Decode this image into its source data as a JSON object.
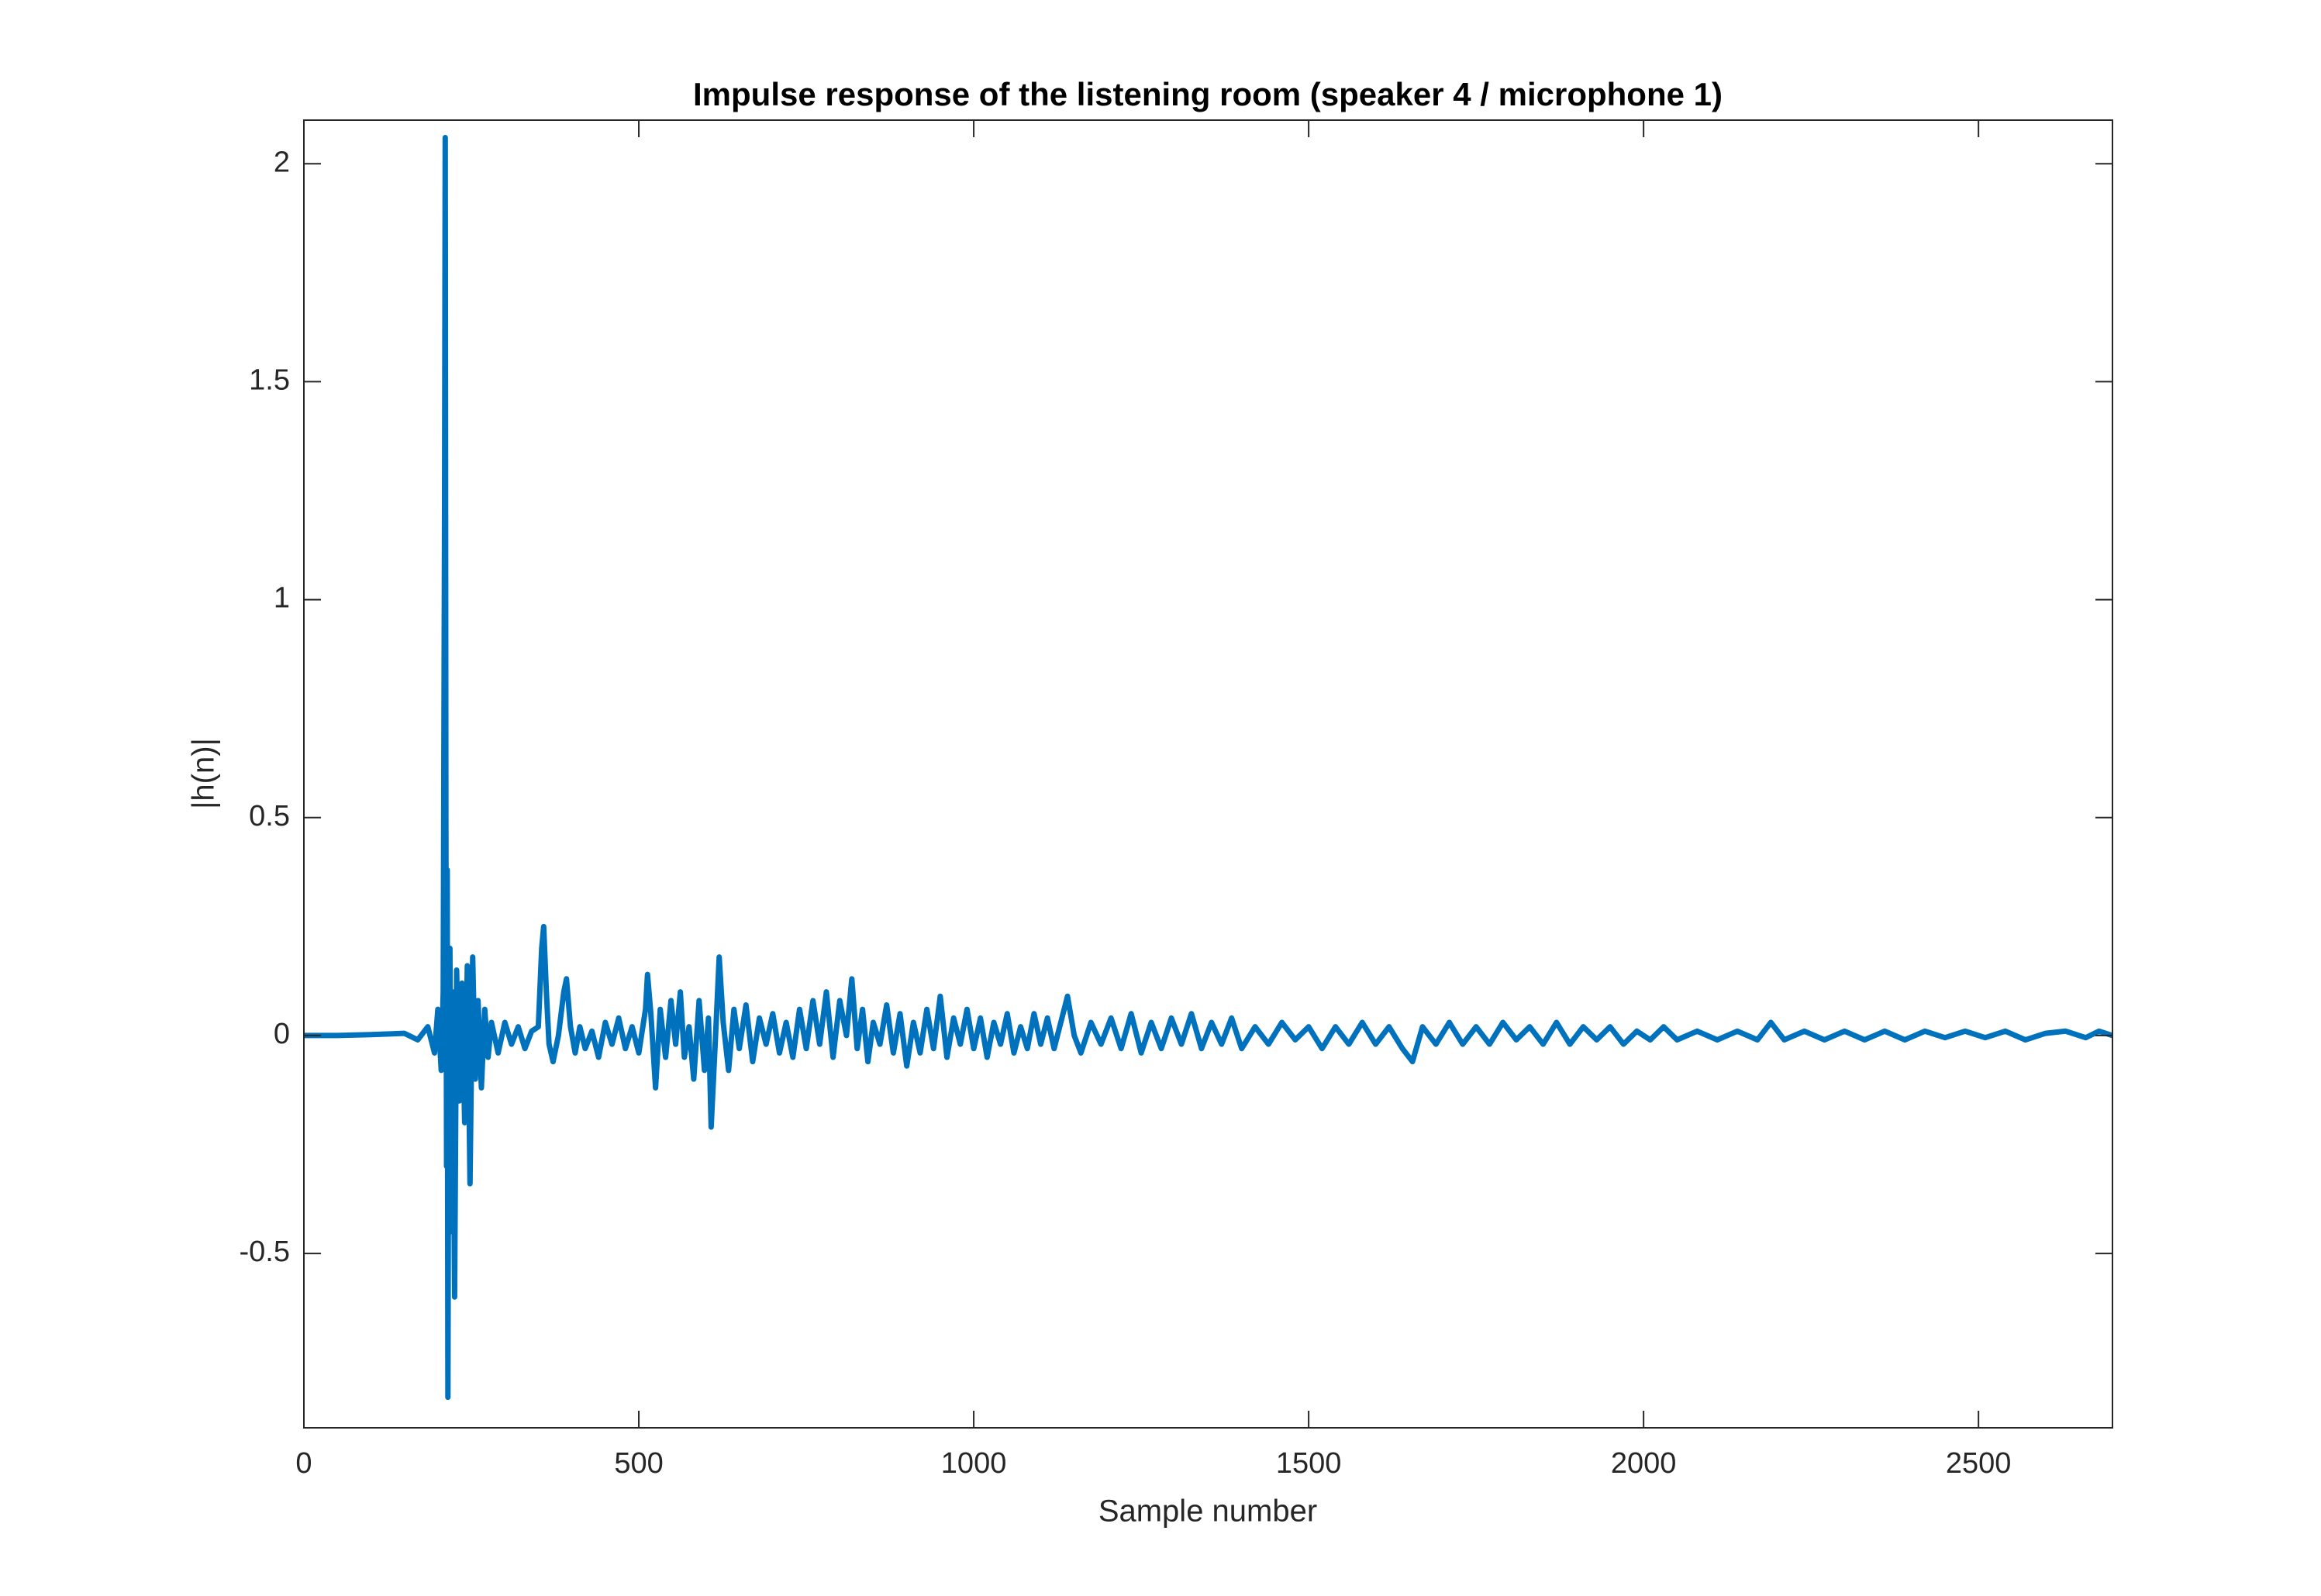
{
  "chart_data": {
    "type": "line",
    "title": "Impulse response of the listening room (speaker 4 / microphone 1)",
    "x_label": "Sample number",
    "y_label": "|h(n)|",
    "xlim": [
      0,
      2700
    ],
    "xticks": [
      0,
      500,
      1000,
      1500,
      2000,
      2500
    ],
    "ylim": [
      -0.9,
      2.1
    ],
    "yticks": [
      -0.5,
      0,
      0.5,
      1,
      1.5,
      2
    ],
    "box": true,
    "x": [
      0,
      50,
      100,
      150,
      170,
      185,
      195,
      200,
      205,
      208,
      210,
      211,
      212,
      213,
      214,
      215,
      216,
      218,
      220,
      222,
      225,
      228,
      232,
      236,
      240,
      244,
      248,
      252,
      256,
      260,
      265,
      270,
      275,
      280,
      290,
      300,
      310,
      320,
      330,
      340,
      350,
      355,
      358,
      362,
      366,
      372,
      380,
      388,
      392,
      398,
      405,
      412,
      420,
      430,
      440,
      450,
      460,
      470,
      480,
      490,
      500,
      510,
      513,
      518,
      525,
      532,
      540,
      548,
      555,
      562,
      568,
      575,
      582,
      590,
      598,
      604,
      608,
      614,
      620,
      626,
      634,
      642,
      650,
      660,
      670,
      680,
      690,
      700,
      710,
      720,
      730,
      740,
      750,
      760,
      770,
      780,
      790,
      800,
      810,
      818,
      826,
      834,
      842,
      850,
      860,
      870,
      880,
      890,
      900,
      910,
      920,
      930,
      940,
      950,
      960,
      970,
      980,
      990,
      1000,
      1010,
      1020,
      1030,
      1040,
      1050,
      1060,
      1070,
      1080,
      1090,
      1100,
      1110,
      1120,
      1130,
      1140,
      1150,
      1160,
      1175,
      1190,
      1205,
      1220,
      1235,
      1250,
      1265,
      1280,
      1295,
      1310,
      1325,
      1340,
      1355,
      1370,
      1385,
      1400,
      1420,
      1440,
      1460,
      1480,
      1500,
      1520,
      1540,
      1560,
      1580,
      1600,
      1620,
      1640,
      1655,
      1670,
      1690,
      1710,
      1730,
      1750,
      1770,
      1790,
      1810,
      1830,
      1850,
      1870,
      1890,
      1910,
      1930,
      1950,
      1970,
      1990,
      2010,
      2030,
      2050,
      2080,
      2110,
      2140,
      2170,
      2190,
      2210,
      2240,
      2270,
      2300,
      2330,
      2360,
      2390,
      2420,
      2450,
      2480,
      2510,
      2540,
      2570,
      2600,
      2630,
      2660,
      2680,
      2700
    ],
    "series": [
      {
        "color": "#0072bd",
        "values": [
          0,
          0,
          0.002,
          0.005,
          -0.01,
          0.02,
          -0.04,
          0.06,
          -0.08,
          0.1,
          1.2,
          2.06,
          0.5,
          -0.3,
          0.38,
          -0.83,
          -0.2,
          0.2,
          -0.45,
          0.1,
          -0.6,
          0.15,
          -0.15,
          0.12,
          -0.2,
          0.16,
          -0.34,
          0.18,
          -0.1,
          0.08,
          -0.12,
          0.06,
          -0.05,
          0.03,
          -0.04,
          0.03,
          -0.02,
          0.02,
          -0.03,
          0.01,
          0.02,
          0.2,
          0.25,
          0.1,
          -0.02,
          -0.06,
          0,
          0.1,
          0.13,
          0.02,
          -0.04,
          0.02,
          -0.03,
          0.01,
          -0.05,
          0.03,
          -0.02,
          0.04,
          -0.03,
          0.02,
          -0.04,
          0.06,
          0.14,
          0.05,
          -0.12,
          0.06,
          -0.05,
          0.08,
          -0.02,
          0.1,
          -0.05,
          0.02,
          -0.1,
          0.08,
          -0.08,
          0.04,
          -0.21,
          -0.02,
          0.18,
          0.03,
          -0.08,
          0.06,
          -0.03,
          0.07,
          -0.06,
          0.04,
          -0.02,
          0.05,
          -0.04,
          0.03,
          -0.05,
          0.06,
          -0.03,
          0.08,
          -0.02,
          0.1,
          -0.05,
          0.08,
          0,
          0.13,
          -0.03,
          0.06,
          -0.06,
          0.03,
          -0.02,
          0.07,
          -0.04,
          0.05,
          -0.07,
          0.03,
          -0.04,
          0.06,
          -0.03,
          0.09,
          -0.05,
          0.04,
          -0.02,
          0.06,
          -0.03,
          0.04,
          -0.05,
          0.03,
          -0.02,
          0.05,
          -0.04,
          0.02,
          -0.03,
          0.05,
          -0.02,
          0.04,
          -0.03,
          0.03,
          0.09,
          0,
          -0.04,
          0.03,
          -0.02,
          0.04,
          -0.03,
          0.05,
          -0.04,
          0.03,
          -0.03,
          0.04,
          -0.02,
          0.05,
          -0.03,
          0.03,
          -0.02,
          0.04,
          -0.03,
          0.02,
          -0.02,
          0.03,
          -0.01,
          0.02,
          -0.03,
          0.02,
          -0.02,
          0.03,
          -0.02,
          0.02,
          -0.03,
          -0.06,
          0.02,
          -0.02,
          0.03,
          -0.02,
          0.02,
          -0.02,
          0.03,
          -0.01,
          0.02,
          -0.02,
          0.03,
          -0.02,
          0.02,
          -0.01,
          0.02,
          -0.02,
          0.01,
          -0.01,
          0.02,
          -0.01,
          0.01,
          -0.01,
          0.01,
          -0.01,
          0.03,
          -0.01,
          0.01,
          -0.01,
          0.01,
          -0.01,
          0.01,
          -0.01,
          0.01,
          -0.005,
          0.01,
          -0.005,
          0.01,
          -0.01,
          0.005,
          0.01,
          -0.005,
          0.01,
          0
        ]
      }
    ]
  }
}
